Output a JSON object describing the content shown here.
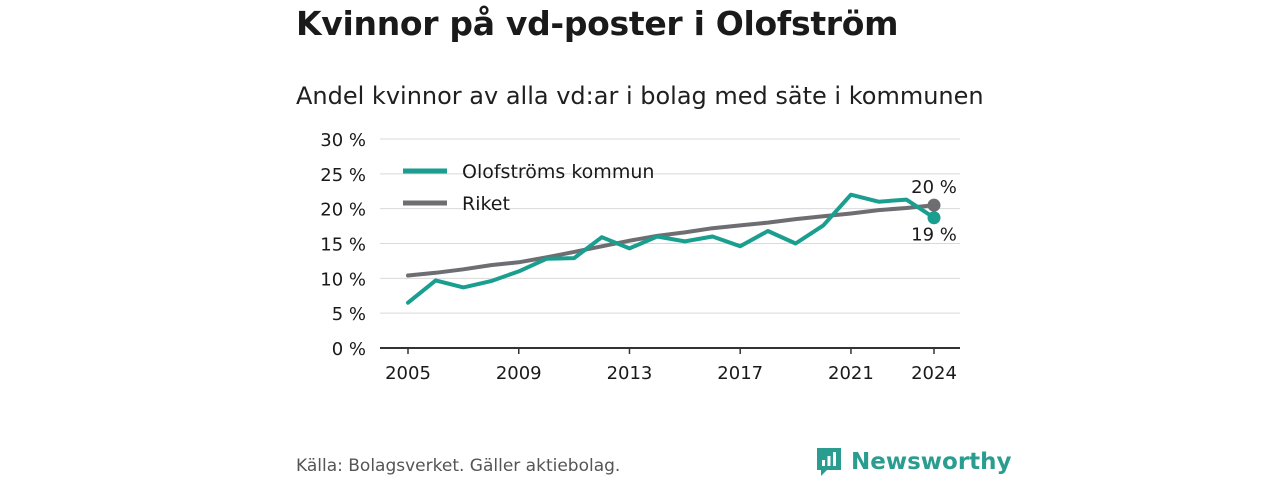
{
  "title": "Kvinnor på vd-poster i Olofström",
  "subtitle": "Andel kvinnor av alla vd:ar i bolag med säte i kommunen",
  "source": "Källa: Bolagsverket. Gäller aktiebolag.",
  "brand": "Newsworthy",
  "colors": {
    "kommun": "#1a9e8f",
    "riket": "#6e6e72",
    "grid": "#d9d9d9",
    "axis": "#333333",
    "brand": "#2a9d90"
  },
  "chart_data": {
    "type": "line",
    "title": "Andel kvinnor av alla vd:ar i bolag med säte i kommunen",
    "xlabel": "",
    "ylabel": "",
    "xlim": [
      2005,
      2024
    ],
    "ylim": [
      0,
      30
    ],
    "y_ticks": [
      0,
      5,
      10,
      15,
      20,
      25,
      30
    ],
    "y_tick_labels": [
      "0 %",
      "5 %",
      "10 %",
      "15 %",
      "20 %",
      "25 %",
      "30 %"
    ],
    "x_ticks": [
      2005,
      2009,
      2013,
      2017,
      2021,
      2024
    ],
    "x_tick_labels": [
      "2005",
      "2009",
      "2013",
      "2017",
      "2021",
      "2024"
    ],
    "grid": true,
    "legend": "top-left",
    "x": [
      2005,
      2006,
      2007,
      2008,
      2009,
      2010,
      2011,
      2012,
      2013,
      2014,
      2015,
      2016,
      2017,
      2018,
      2019,
      2020,
      2021,
      2022,
      2023,
      2024
    ],
    "series": [
      {
        "name": "Olofströms kommun",
        "color": "#1a9e8f",
        "values": [
          6.5,
          9.7,
          8.7,
          9.6,
          11.0,
          12.8,
          12.9,
          15.9,
          14.3,
          16.0,
          15.3,
          16.0,
          14.6,
          16.8,
          15.0,
          17.6,
          22.0,
          21.0,
          21.3,
          18.7
        ],
        "end_label": "19 %"
      },
      {
        "name": "Riket",
        "color": "#6e6e72",
        "values": [
          10.4,
          10.8,
          11.3,
          11.9,
          12.3,
          13.0,
          13.8,
          14.6,
          15.4,
          16.1,
          16.6,
          17.2,
          17.6,
          18.0,
          18.5,
          18.9,
          19.3,
          19.8,
          20.1,
          20.5
        ],
        "end_label": "20 %"
      }
    ]
  }
}
